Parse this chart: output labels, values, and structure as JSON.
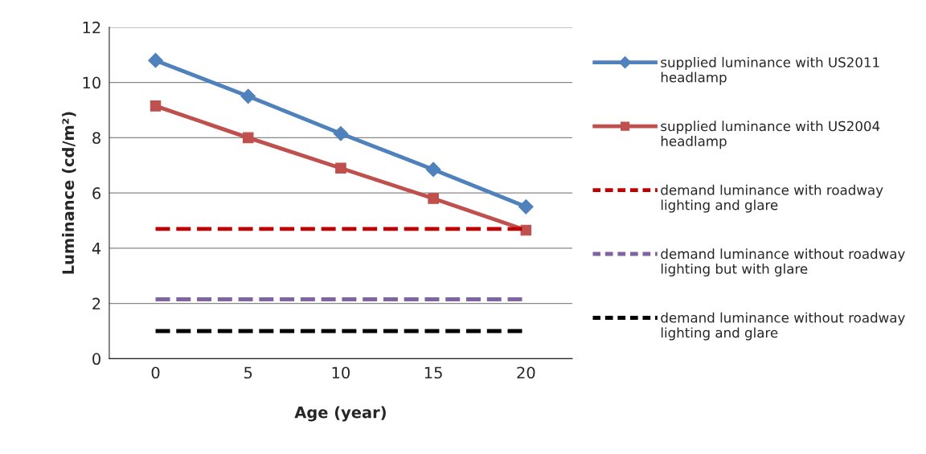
{
  "chart_data": {
    "type": "line",
    "xlabel": "Age (year)",
    "ylabel": "Luminance (cd/m²)",
    "categories": [
      "0",
      "5",
      "10",
      "15",
      "20"
    ],
    "ylim": [
      0,
      12
    ],
    "yticks": [
      0,
      2,
      4,
      6,
      8,
      10,
      12
    ],
    "grid": "y",
    "legend": "right",
    "series": [
      {
        "name": "supplied luminance with US2011 headlamp",
        "color": "#4f81bd",
        "marker": "diamond",
        "line_style": "solid",
        "values": [
          10.8,
          9.5,
          8.15,
          6.85,
          5.5
        ]
      },
      {
        "name": "supplied luminance with US2004 headlamp",
        "color": "#c0504d",
        "marker": "square",
        "line_style": "solid",
        "values": [
          9.15,
          8.0,
          6.9,
          5.8,
          4.65
        ]
      },
      {
        "name": "demand luminance with roadway lighting and glare",
        "color": "#c00000",
        "marker": "none",
        "line_style": "dashed",
        "values": [
          4.7,
          4.7,
          4.7,
          4.7,
          4.7
        ]
      },
      {
        "name": "demand luminance without roadway lighting but with glare",
        "color": "#8064a2",
        "marker": "none",
        "line_style": "dashed",
        "values": [
          2.15,
          2.15,
          2.15,
          2.15,
          2.15
        ]
      },
      {
        "name": "demand luminance without roadway lighting and glare",
        "color": "#000000",
        "marker": "none",
        "line_style": "dashed",
        "values": [
          1.0,
          1.0,
          1.0,
          1.0,
          1.0
        ]
      }
    ]
  }
}
